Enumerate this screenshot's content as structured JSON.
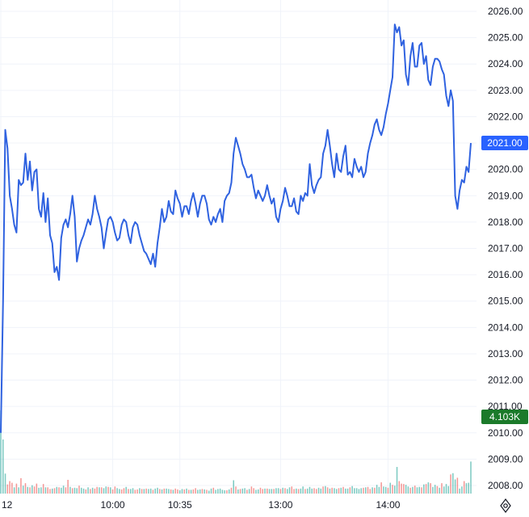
{
  "chart_data": {
    "type": "line",
    "title": "",
    "xlabel": "",
    "ylabel": "",
    "ylim": [
      2008.0,
      2026.0
    ],
    "y_ticks": [
      "2026.00",
      "2025.00",
      "2024.00",
      "2023.00",
      "2022.00",
      "2021.00",
      "2020.00",
      "2019.00",
      "2018.00",
      "2017.00",
      "2016.00",
      "2015.00",
      "2014.00",
      "2013.00",
      "2012.00",
      "2011.00",
      "2010.00",
      "2009.00",
      "2008.00"
    ],
    "x_ticks": [
      {
        "label": "12",
        "idx": 0
      },
      {
        "label": "10:00",
        "idx": 50
      },
      {
        "label": "10:35",
        "idx": 80
      },
      {
        "label": "13:00",
        "idx": 125
      },
      {
        "label": "14:00",
        "idx": 173
      }
    ],
    "grid": true,
    "colors": {
      "line": "#2f62e0",
      "up": "#26a69a",
      "down": "#ef5350",
      "price_badge": "#2962ff",
      "volume_badge": "#1b7a2a",
      "grid": "#f0f3fa"
    },
    "current_price": "2021.00",
    "current_volume": "4.103K",
    "series": [
      {
        "values": [
          2010.0,
          2015.0,
          2021.5,
          2020.8,
          2019.0,
          2018.5,
          2017.9,
          2017.6,
          2019.6,
          2019.4,
          2019.5,
          2020.6,
          2019.6,
          2020.3,
          2019.2,
          2019.9,
          2020.0,
          2018.5,
          2018.2,
          2019.1,
          2018.0,
          2018.9,
          2017.5,
          2017.2,
          2016.1,
          2016.3,
          2015.8,
          2017.4,
          2017.9,
          2018.1,
          2017.8,
          2018.3,
          2019.0,
          2018.2,
          2016.5,
          2017.0,
          2017.3,
          2017.5,
          2017.8,
          2018.1,
          2017.9,
          2018.3,
          2019.0,
          2018.5,
          2018.2,
          2017.8,
          2017.0,
          2017.6,
          2018.1,
          2018.2,
          2018.0,
          2017.6,
          2017.3,
          2017.4,
          2017.9,
          2018.1,
          2018.0,
          2017.5,
          2017.2,
          2017.8,
          2018.0,
          2017.9,
          2017.5,
          2017.2,
          2016.9,
          2016.8,
          2016.6,
          2016.4,
          2016.8,
          2016.3,
          2017.2,
          2017.8,
          2018.5,
          2018.0,
          2018.2,
          2018.8,
          2018.4,
          2018.3,
          2019.2,
          2018.9,
          2018.7,
          2018.2,
          2018.6,
          2018.6,
          2018.3,
          2018.8,
          2019.1,
          2018.7,
          2018.2,
          2018.7,
          2019.0,
          2019.0,
          2018.7,
          2018.1,
          2017.9,
          2018.2,
          2018.0,
          2018.3,
          2018.5,
          2018.0,
          2018.8,
          2019.0,
          2019.1,
          2019.5,
          2020.6,
          2021.2,
          2020.9,
          2020.6,
          2020.2,
          2020.0,
          2019.7,
          2019.7,
          2019.8,
          2019.3,
          2018.9,
          2019.2,
          2019.0,
          2018.8,
          2019.0,
          2019.4,
          2019.0,
          2018.7,
          2018.9,
          2018.2,
          2018.0,
          2018.5,
          2018.8,
          2019.3,
          2019.0,
          2018.6,
          2018.6,
          2018.9,
          2018.4,
          2018.3,
          2019.0,
          2018.8,
          2019.1,
          2019.0,
          2020.2,
          2019.4,
          2019.1,
          2019.4,
          2019.6,
          2019.7,
          2020.6,
          2020.9,
          2021.5,
          2020.9,
          2020.2,
          2019.7,
          2020.6,
          2020.0,
          2019.9,
          2020.5,
          2020.9,
          2019.8,
          2019.9,
          2019.7,
          2020.4,
          2020.1,
          2019.9,
          2020.1,
          2019.7,
          2019.9,
          2020.6,
          2021.0,
          2021.3,
          2021.7,
          2021.9,
          2021.5,
          2021.3,
          2021.6,
          2022.1,
          2022.5,
          2023.0,
          2023.5,
          2025.5,
          2025.2,
          2025.4,
          2024.7,
          2024.9,
          2023.6,
          2023.2,
          2024.3,
          2024.8,
          2023.9,
          2023.9,
          2024.7,
          2024.8,
          2024.0,
          2024.3,
          2023.4,
          2023.2,
          2023.9,
          2024.2,
          2024.2,
          2024.1,
          2023.8,
          2023.6,
          2022.8,
          2022.4,
          2023.0,
          2022.6,
          2019.0,
          2018.5,
          2019.2,
          2019.6,
          2019.5,
          2020.1,
          2019.9,
          2021.0
        ]
      }
    ],
    "volume": [
      2000,
      1300,
      480,
      220,
      300,
      260,
      150,
      240,
      150,
      370,
      190,
      250,
      160,
      150,
      200,
      170,
      240,
      140,
      150,
      230,
      150,
      150,
      110,
      120,
      130,
      160,
      150,
      140,
      190,
      150,
      330,
      160,
      130,
      140,
      130,
      190,
      140,
      120,
      100,
      150,
      110,
      140,
      120,
      160,
      150,
      150,
      130,
      170,
      160,
      150,
      100,
      170,
      130,
      110,
      100,
      130,
      160,
      110,
      110,
      130,
      90,
      100,
      130,
      110,
      110,
      120,
      110,
      120,
      90,
      120,
      140,
      110,
      100,
      120,
      120,
      110,
      100,
      90,
      120,
      100,
      80,
      110,
      100,
      120,
      90,
      90,
      100,
      130,
      90,
      100,
      110,
      100,
      90,
      70,
      120,
      140,
      90,
      110,
      120,
      90,
      80,
      80,
      100,
      140,
      320,
      170,
      100,
      110,
      120,
      130,
      90,
      110,
      170,
      130,
      90,
      100,
      140,
      110,
      120,
      120,
      110,
      110,
      110,
      130,
      130,
      110,
      140,
      130,
      110,
      150,
      170,
      110,
      120,
      110,
      120,
      170,
      110,
      120,
      160,
      120,
      130,
      110,
      140,
      120,
      170,
      180,
      150,
      120,
      140,
      130,
      110,
      130,
      140,
      160,
      120,
      120,
      150,
      180,
      130,
      130,
      110,
      130,
      140,
      150,
      160,
      110,
      150,
      140,
      210,
      160,
      270,
      170,
      160,
      140,
      260,
      210,
      190,
      640,
      300,
      240,
      230,
      210,
      170,
      140,
      160,
      190,
      150,
      160,
      150,
      220,
      230,
      270,
      250,
      160,
      210,
      180,
      140,
      250,
      170,
      230,
      180,
      460,
      490,
      340,
      380,
      120,
      170,
      300,
      250,
      260,
      770
    ],
    "volume_up": [
      1,
      1,
      1,
      0,
      0,
      0,
      1,
      0,
      1,
      0,
      1,
      0,
      1,
      0,
      1,
      0,
      0,
      1,
      1,
      0,
      1,
      0,
      0,
      1,
      0,
      1,
      0,
      1,
      1,
      0,
      0,
      1,
      0,
      1,
      1,
      0,
      1,
      1,
      0,
      1,
      0,
      1,
      0,
      0,
      1,
      0,
      1,
      1,
      0,
      1,
      0,
      0,
      1,
      1,
      0,
      0,
      1,
      0,
      1,
      1,
      0,
      0,
      1,
      0,
      1,
      0,
      1,
      1,
      0,
      1,
      1,
      0,
      1,
      0,
      1,
      1,
      0,
      1,
      0,
      0,
      1,
      1,
      0,
      1,
      0,
      1,
      0,
      0,
      1,
      1,
      0,
      1,
      0,
      1,
      1,
      0,
      1,
      1,
      1,
      1,
      1,
      0,
      1,
      0,
      1,
      0,
      1,
      0,
      1,
      1,
      0,
      1,
      0,
      0,
      1,
      1,
      0,
      0,
      1,
      0,
      1,
      1,
      0,
      1,
      1,
      0,
      1,
      0,
      1,
      1,
      0,
      0,
      1,
      0,
      1,
      1,
      0,
      1,
      1,
      1,
      0,
      0,
      1,
      1,
      0,
      1,
      0,
      1,
      0,
      1,
      1,
      0,
      1,
      0,
      1,
      1,
      0,
      1,
      1,
      1,
      1,
      1,
      0,
      1,
      0,
      0,
      1,
      0,
      1,
      1,
      0,
      1,
      1,
      0,
      1,
      0,
      1,
      1,
      0,
      0,
      0,
      1,
      1,
      0,
      1,
      0,
      1,
      1,
      0,
      1,
      0,
      1,
      0,
      1,
      1,
      0,
      1,
      0,
      1,
      1,
      1,
      0,
      1,
      1,
      0,
      1,
      1,
      0,
      1,
      1,
      1
    ]
  }
}
